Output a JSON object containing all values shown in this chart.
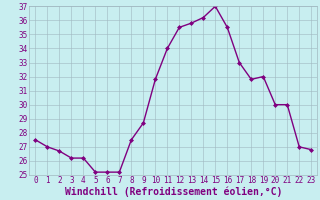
{
  "x": [
    0,
    1,
    2,
    3,
    4,
    5,
    6,
    7,
    8,
    9,
    10,
    11,
    12,
    13,
    14,
    15,
    16,
    17,
    18,
    19,
    20,
    21,
    22,
    23
  ],
  "y": [
    27.5,
    27.0,
    26.7,
    26.2,
    26.2,
    25.2,
    25.2,
    25.2,
    27.5,
    28.7,
    31.8,
    34.0,
    35.5,
    35.8,
    36.2,
    37.0,
    35.5,
    33.0,
    31.8,
    32.0,
    30.0,
    30.0,
    27.0,
    26.8
  ],
  "line_color": "#800080",
  "marker": "D",
  "marker_size": 2,
  "bg_color": "#c8eef0",
  "grid_color": "#a0b8c0",
  "xlabel": "Windchill (Refroidissement éolien,°C)",
  "xlabel_color": "#800080",
  "ylim": [
    25,
    37
  ],
  "xlim": [
    -0.5,
    23.5
  ],
  "yticks": [
    25,
    26,
    27,
    28,
    29,
    30,
    31,
    32,
    33,
    34,
    35,
    36,
    37
  ],
  "xticks": [
    0,
    1,
    2,
    3,
    4,
    5,
    6,
    7,
    8,
    9,
    10,
    11,
    12,
    13,
    14,
    15,
    16,
    17,
    18,
    19,
    20,
    21,
    22,
    23
  ],
  "tick_color": "#800080",
  "tick_fontsize": 5.5,
  "xlabel_fontsize": 7.0,
  "linewidth": 1.0
}
